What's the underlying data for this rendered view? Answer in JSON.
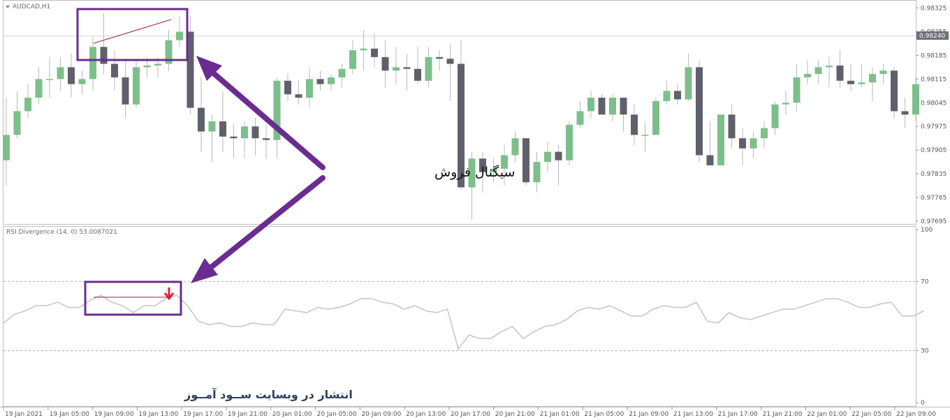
{
  "chart_data": [
    {
      "type": "candlestick",
      "title": "AUDCAD,H1",
      "current_price_label": "0.98240",
      "ylim": [
        0.9766,
        0.9836
      ],
      "y_ticks": [
        "0.98325",
        "0.98255",
        "0.98185",
        "0.98115",
        "0.98045",
        "0.97975",
        "0.97905",
        "0.97835",
        "0.97765",
        "0.97695"
      ],
      "x_ticks": [
        "19 Jan 2021",
        "19 Jan 05:00",
        "19 Jan 09:00",
        "19 Jan 13:00",
        "19 Jan 17:00",
        "19 Jan 21:00",
        "20 Jan 01:00",
        "20 Jan 05:00",
        "20 Jan 09:00",
        "20 Jan 13:00",
        "20 Jan 17:00",
        "20 Jan 21:00",
        "21 Jan 01:00",
        "21 Jan 05:00",
        "21 Jan 09:00",
        "21 Jan 13:00",
        "21 Jan 17:00",
        "21 Jan 21:00",
        "22 Jan 01:00",
        "22 Jan 05:00",
        "22 Jan 09:00"
      ],
      "candles": [
        {
          "o": 0.97875,
          "h": 0.9806,
          "l": 0.978,
          "c": 0.9795
        },
        {
          "o": 0.9795,
          "h": 0.9808,
          "l": 0.9794,
          "c": 0.9802
        },
        {
          "o": 0.9802,
          "h": 0.981,
          "l": 0.98,
          "c": 0.9806
        },
        {
          "o": 0.9806,
          "h": 0.9815,
          "l": 0.9804,
          "c": 0.98115
        },
        {
          "o": 0.98115,
          "h": 0.9818,
          "l": 0.9806,
          "c": 0.98115
        },
        {
          "o": 0.98115,
          "h": 0.9818,
          "l": 0.9808,
          "c": 0.9815
        },
        {
          "o": 0.9815,
          "h": 0.9819,
          "l": 0.9806,
          "c": 0.981
        },
        {
          "o": 0.981,
          "h": 0.9814,
          "l": 0.9807,
          "c": 0.98115
        },
        {
          "o": 0.98115,
          "h": 0.9824,
          "l": 0.9808,
          "c": 0.9821
        },
        {
          "o": 0.9821,
          "h": 0.9831,
          "l": 0.9813,
          "c": 0.9816
        },
        {
          "o": 0.9816,
          "h": 0.982,
          "l": 0.9808,
          "c": 0.9812
        },
        {
          "o": 0.9812,
          "h": 0.9817,
          "l": 0.98,
          "c": 0.9804
        },
        {
          "o": 0.9804,
          "h": 0.9817,
          "l": 0.9803,
          "c": 0.9815
        },
        {
          "o": 0.9815,
          "h": 0.9818,
          "l": 0.9812,
          "c": 0.98155
        },
        {
          "o": 0.98155,
          "h": 0.9818,
          "l": 0.9812,
          "c": 0.9816
        },
        {
          "o": 0.9816,
          "h": 0.9826,
          "l": 0.9814,
          "c": 0.9823
        },
        {
          "o": 0.9823,
          "h": 0.983,
          "l": 0.9821,
          "c": 0.98255
        },
        {
          "o": 0.98255,
          "h": 0.983,
          "l": 0.9801,
          "c": 0.9803
        },
        {
          "o": 0.9803,
          "h": 0.9812,
          "l": 0.979,
          "c": 0.9796
        },
        {
          "o": 0.9796,
          "h": 0.9801,
          "l": 0.9787,
          "c": 0.9799
        },
        {
          "o": 0.9799,
          "h": 0.9808,
          "l": 0.979,
          "c": 0.97945
        },
        {
          "o": 0.97945,
          "h": 0.9798,
          "l": 0.9788,
          "c": 0.9794
        },
        {
          "o": 0.9794,
          "h": 0.9799,
          "l": 0.9788,
          "c": 0.97975
        },
        {
          "o": 0.97975,
          "h": 0.98,
          "l": 0.9789,
          "c": 0.9794
        },
        {
          "o": 0.9794,
          "h": 0.9798,
          "l": 0.9788,
          "c": 0.97935
        },
        {
          "o": 0.97935,
          "h": 0.9812,
          "l": 0.9788,
          "c": 0.9811
        },
        {
          "o": 0.9811,
          "h": 0.9813,
          "l": 0.9805,
          "c": 0.9807
        },
        {
          "o": 0.9807,
          "h": 0.9811,
          "l": 0.9804,
          "c": 0.9806
        },
        {
          "o": 0.9806,
          "h": 0.9815,
          "l": 0.9803,
          "c": 0.98115
        },
        {
          "o": 0.98115,
          "h": 0.9814,
          "l": 0.9808,
          "c": 0.981
        },
        {
          "o": 0.981,
          "h": 0.9813,
          "l": 0.9808,
          "c": 0.9812
        },
        {
          "o": 0.9812,
          "h": 0.9816,
          "l": 0.9809,
          "c": 0.98145
        },
        {
          "o": 0.98145,
          "h": 0.9823,
          "l": 0.9813,
          "c": 0.982
        },
        {
          "o": 0.982,
          "h": 0.9826,
          "l": 0.9814,
          "c": 0.98205
        },
        {
          "o": 0.98205,
          "h": 0.9825,
          "l": 0.9815,
          "c": 0.9818
        },
        {
          "o": 0.9818,
          "h": 0.9823,
          "l": 0.9809,
          "c": 0.9814
        },
        {
          "o": 0.9814,
          "h": 0.9821,
          "l": 0.981,
          "c": 0.9815
        },
        {
          "o": 0.9815,
          "h": 0.9819,
          "l": 0.9808,
          "c": 0.98145
        },
        {
          "o": 0.98145,
          "h": 0.9821,
          "l": 0.981,
          "c": 0.9811
        },
        {
          "o": 0.9811,
          "h": 0.9821,
          "l": 0.9809,
          "c": 0.9818
        },
        {
          "o": 0.9818,
          "h": 0.982,
          "l": 0.9814,
          "c": 0.98175
        },
        {
          "o": 0.98175,
          "h": 0.9822,
          "l": 0.9805,
          "c": 0.9816
        },
        {
          "o": 0.9816,
          "h": 0.9823,
          "l": 0.9779,
          "c": 0.97795
        },
        {
          "o": 0.97795,
          "h": 0.979,
          "l": 0.977,
          "c": 0.9788
        },
        {
          "o": 0.9788,
          "h": 0.979,
          "l": 0.9778,
          "c": 0.9784
        },
        {
          "o": 0.9784,
          "h": 0.9788,
          "l": 0.9781,
          "c": 0.9785
        },
        {
          "o": 0.9785,
          "h": 0.9792,
          "l": 0.978,
          "c": 0.9789
        },
        {
          "o": 0.9789,
          "h": 0.9796,
          "l": 0.9787,
          "c": 0.9794
        },
        {
          "o": 0.9794,
          "h": 0.9794,
          "l": 0.978,
          "c": 0.9781
        },
        {
          "o": 0.9781,
          "h": 0.979,
          "l": 0.9778,
          "c": 0.9787
        },
        {
          "o": 0.9787,
          "h": 0.9793,
          "l": 0.9784,
          "c": 0.979
        },
        {
          "o": 0.979,
          "h": 0.9792,
          "l": 0.978,
          "c": 0.97875
        },
        {
          "o": 0.97875,
          "h": 0.9799,
          "l": 0.9786,
          "c": 0.9798
        },
        {
          "o": 0.9798,
          "h": 0.9805,
          "l": 0.9797,
          "c": 0.9802
        },
        {
          "o": 0.9802,
          "h": 0.9808,
          "l": 0.98,
          "c": 0.9806
        },
        {
          "o": 0.9806,
          "h": 0.9807,
          "l": 0.9801,
          "c": 0.9801
        },
        {
          "o": 0.9801,
          "h": 0.9807,
          "l": 0.9799,
          "c": 0.9806
        },
        {
          "o": 0.9806,
          "h": 0.9806,
          "l": 0.9796,
          "c": 0.9801
        },
        {
          "o": 0.9801,
          "h": 0.9804,
          "l": 0.9792,
          "c": 0.9795
        },
        {
          "o": 0.9795,
          "h": 0.9799,
          "l": 0.979,
          "c": 0.9795
        },
        {
          "o": 0.9795,
          "h": 0.9806,
          "l": 0.9795,
          "c": 0.9805
        },
        {
          "o": 0.9805,
          "h": 0.9811,
          "l": 0.9804,
          "c": 0.9808
        },
        {
          "o": 0.9808,
          "h": 0.981,
          "l": 0.9804,
          "c": 0.98055
        },
        {
          "o": 0.98055,
          "h": 0.9819,
          "l": 0.9805,
          "c": 0.9815
        },
        {
          "o": 0.9815,
          "h": 0.9817,
          "l": 0.9787,
          "c": 0.9789
        },
        {
          "o": 0.9789,
          "h": 0.9799,
          "l": 0.9786,
          "c": 0.9786
        },
        {
          "o": 0.9786,
          "h": 0.9801,
          "l": 0.9786,
          "c": 0.9801
        },
        {
          "o": 0.9801,
          "h": 0.9804,
          "l": 0.9791,
          "c": 0.9794
        },
        {
          "o": 0.9794,
          "h": 0.9797,
          "l": 0.9786,
          "c": 0.9791
        },
        {
          "o": 0.9791,
          "h": 0.9796,
          "l": 0.9788,
          "c": 0.9794
        },
        {
          "o": 0.9794,
          "h": 0.9799,
          "l": 0.9791,
          "c": 0.9797
        },
        {
          "o": 0.9797,
          "h": 0.9805,
          "l": 0.9795,
          "c": 0.9804
        },
        {
          "o": 0.9804,
          "h": 0.9808,
          "l": 0.9801,
          "c": 0.98045
        },
        {
          "o": 0.98045,
          "h": 0.9816,
          "l": 0.9802,
          "c": 0.9812
        },
        {
          "o": 0.9812,
          "h": 0.9817,
          "l": 0.981,
          "c": 0.9813
        },
        {
          "o": 0.9813,
          "h": 0.9817,
          "l": 0.981,
          "c": 0.9815
        },
        {
          "o": 0.9815,
          "h": 0.9818,
          "l": 0.9809,
          "c": 0.98155
        },
        {
          "o": 0.98155,
          "h": 0.982,
          "l": 0.9809,
          "c": 0.9811
        },
        {
          "o": 0.9811,
          "h": 0.9816,
          "l": 0.9808,
          "c": 0.981
        },
        {
          "o": 0.981,
          "h": 0.9816,
          "l": 0.9809,
          "c": 0.98105
        },
        {
          "o": 0.98105,
          "h": 0.9815,
          "l": 0.9805,
          "c": 0.9813
        },
        {
          "o": 0.9813,
          "h": 0.9816,
          "l": 0.981,
          "c": 0.9814
        },
        {
          "o": 0.9814,
          "h": 0.9815,
          "l": 0.98,
          "c": 0.9802
        },
        {
          "o": 0.9802,
          "h": 0.9806,
          "l": 0.9797,
          "c": 0.9801
        },
        {
          "o": 0.9801,
          "h": 0.9812,
          "l": 0.9799,
          "c": 0.981
        }
      ],
      "up_color": "#7dbf8a",
      "down_color": "#5f606b"
    },
    {
      "type": "line",
      "title": "RSI Divergence (14, 0) 53.0087021",
      "ylim": [
        0,
        100
      ],
      "y_ticks": [
        "100",
        "70",
        "30",
        "0"
      ],
      "levels": [
        70,
        30
      ],
      "series": [
        {
          "values": [
            46,
            51,
            53,
            56,
            56,
            58,
            55,
            55,
            59,
            62,
            58,
            56,
            52,
            56,
            56,
            60,
            62,
            56,
            47,
            45,
            46,
            44,
            44,
            46,
            45,
            45,
            54,
            53,
            52,
            55,
            54,
            55,
            57,
            60,
            60,
            58,
            57,
            54,
            56,
            53,
            52,
            54,
            31,
            39,
            37,
            37,
            41,
            44,
            37,
            41,
            44,
            45,
            48,
            53,
            55,
            54,
            56,
            53,
            50,
            50,
            54,
            56,
            55,
            55,
            58,
            47,
            46,
            52,
            49,
            48,
            50,
            52,
            54,
            54,
            56,
            58,
            60,
            60,
            58,
            55,
            55,
            57,
            58,
            50,
            50,
            53
          ]
        }
      ],
      "line_color": "#c4c4c4"
    }
  ],
  "annotation": {
    "sell_signal_label": "سیگنال فروش",
    "watermark": "انتشار در وبسایت ســود آمــوز",
    "box_color": "#6a2c91",
    "divergence_line_color": "#a0203a",
    "signal_arrow_color": "#e0203c"
  }
}
